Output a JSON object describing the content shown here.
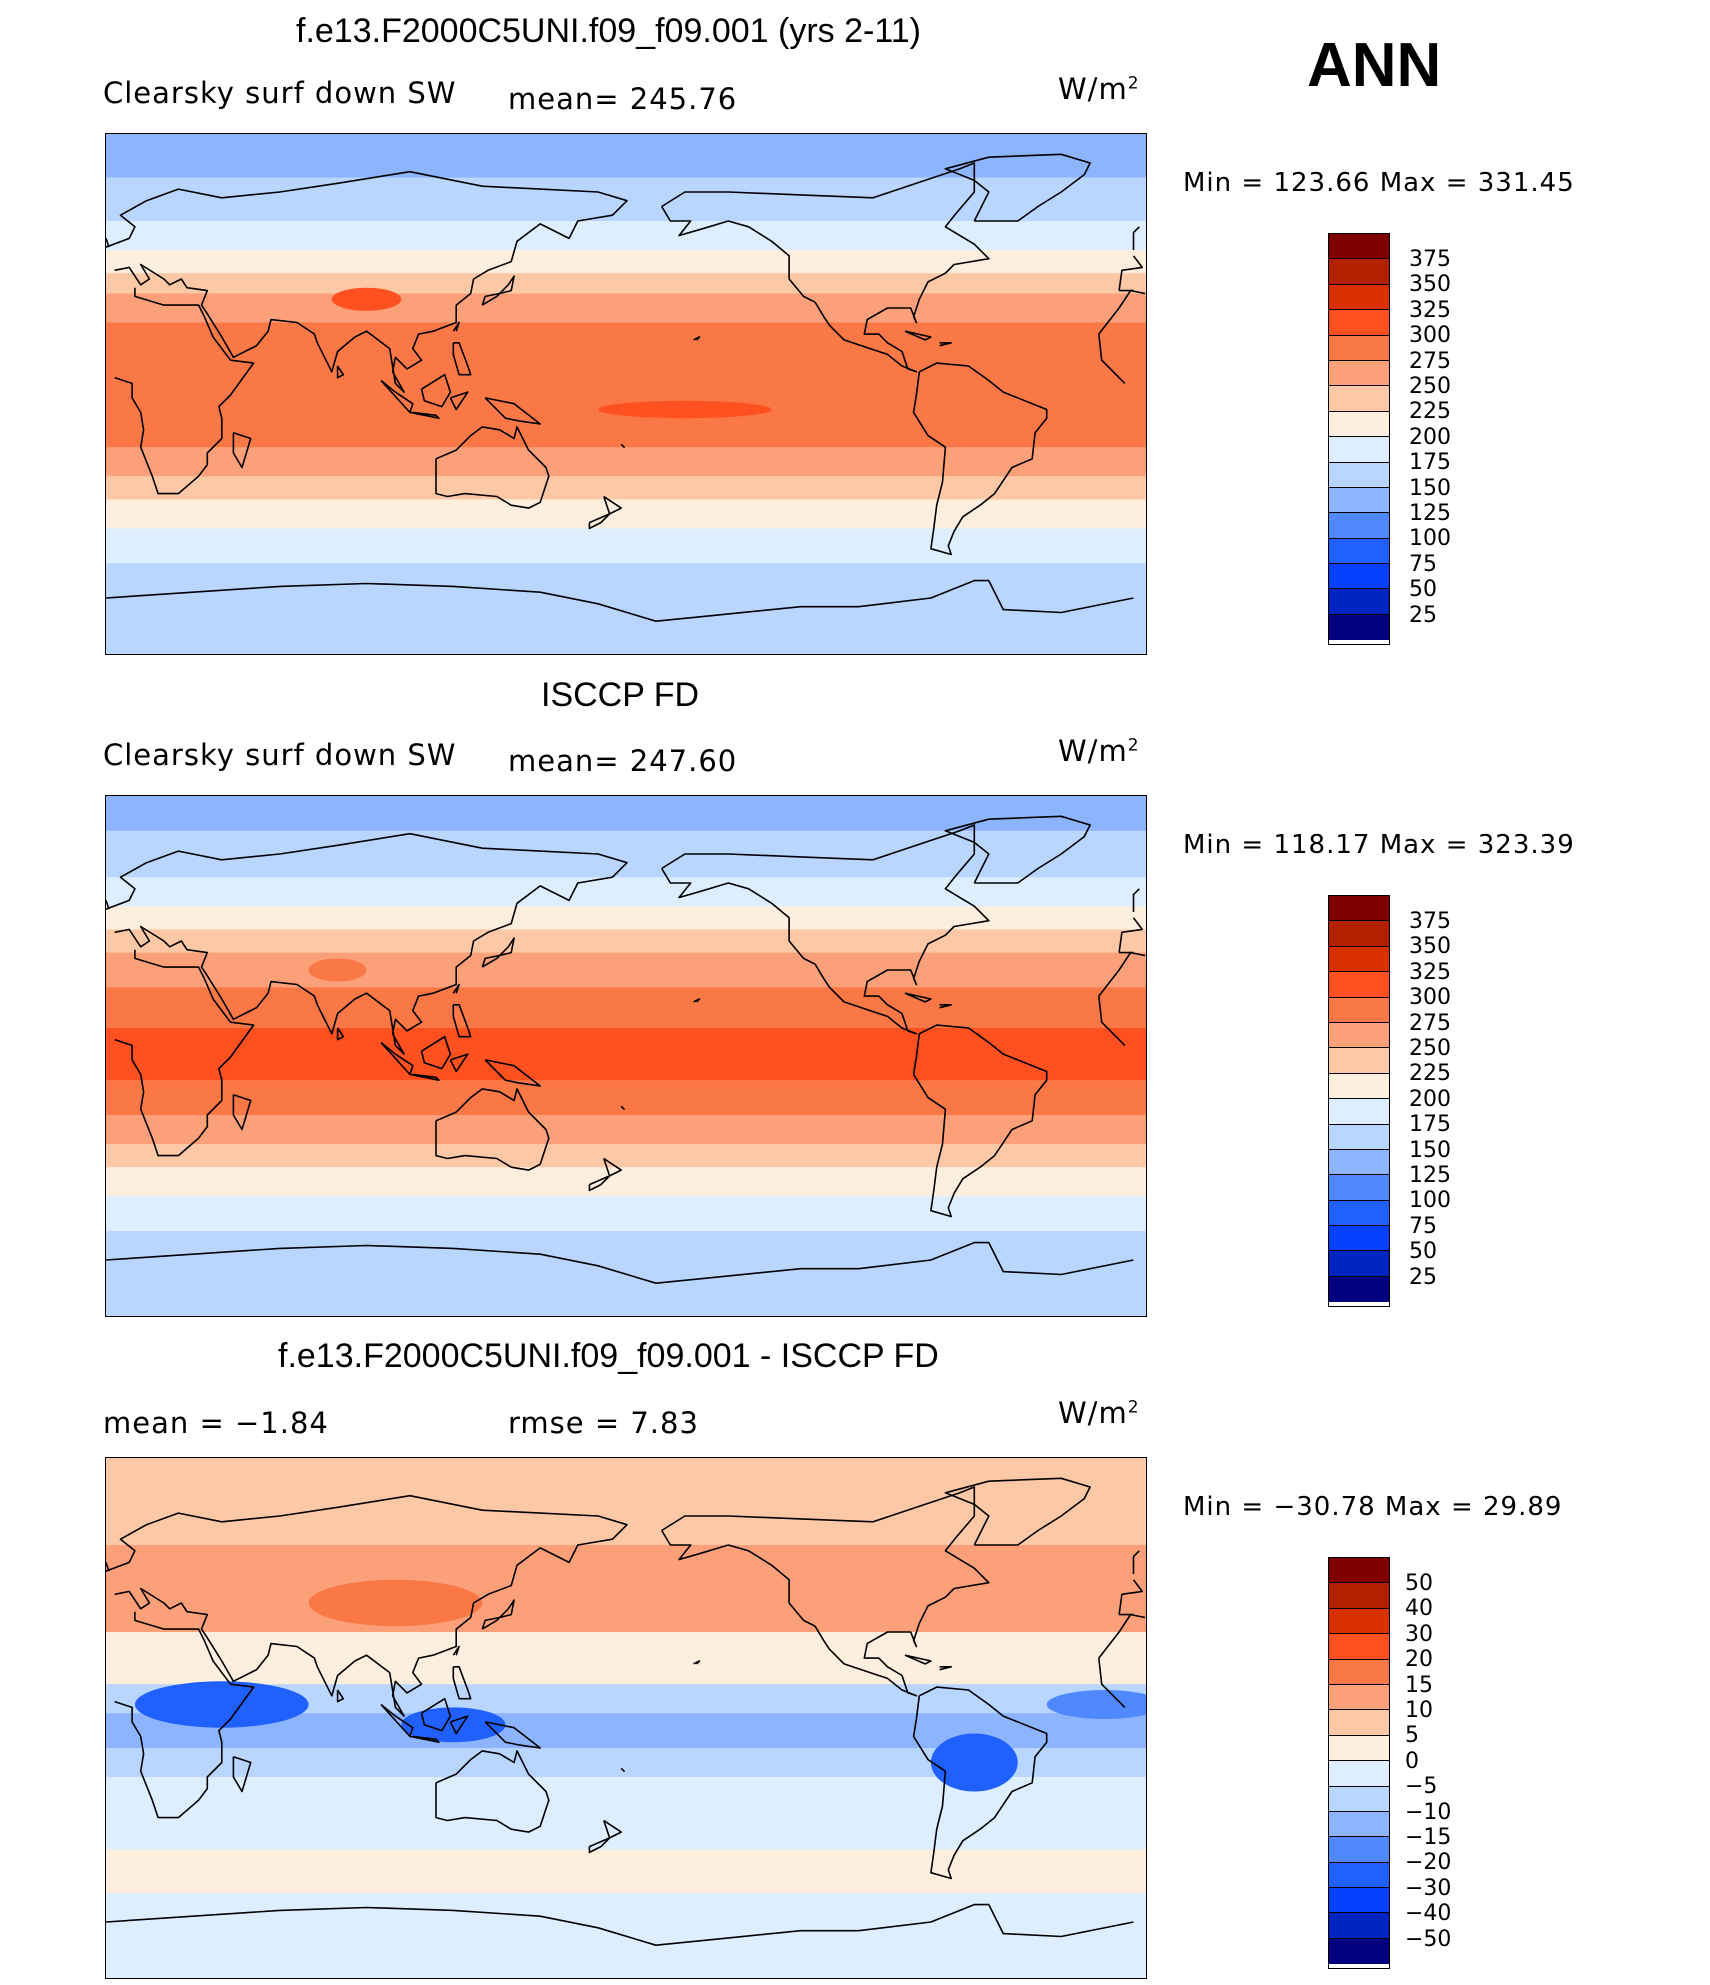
{
  "season": "ANN",
  "panels": [
    {
      "title": "f.e13.F2000C5UNI.f09_f09.001 (yrs 2-11)",
      "variable": "Clearsky surf down SW",
      "stat1": "mean= 245.76",
      "stat2": "",
      "units_base": "W/m",
      "units_exp": "2",
      "minmax": "Min  =  123.66  Max  =  331.45",
      "kind": "abs"
    },
    {
      "title": "ISCCP FD",
      "variable": "Clearsky surf down SW",
      "stat1": "mean= 247.60",
      "stat2": "",
      "units_base": "W/m",
      "units_exp": "2",
      "minmax": "Min  =  118.17  Max  =  323.39",
      "kind": "abs"
    },
    {
      "title": "f.e13.F2000C5UNI.f09_f09.001 - ISCCP FD",
      "variable": "mean  =    −1.84",
      "stat1": "rmse  =     7.83",
      "stat2": "",
      "units_base": "W/m",
      "units_exp": "2",
      "minmax": "Min  =  −30.78  Max  =    29.89",
      "kind": "diff"
    }
  ],
  "colorbars": {
    "abs": {
      "levels": [
        "375",
        "350",
        "325",
        "300",
        "275",
        "250",
        "225",
        "200",
        "175",
        "150",
        "125",
        "100",
        "75",
        "50",
        "25"
      ],
      "colors": [
        "#800000",
        "#b32000",
        "#d93000",
        "#ff5020",
        "#fa7846",
        "#fca07a",
        "#fdc8a6",
        "#fdeede",
        "#dceeff",
        "#b8d6ff",
        "#8cb4ff",
        "#5088ff",
        "#2060ff",
        "#0840ff",
        "#0025c0",
        "#000080"
      ]
    },
    "diff": {
      "levels": [
        "50",
        "40",
        "30",
        "20",
        "15",
        "10",
        "5",
        "0",
        "−5",
        "−10",
        "−15",
        "−20",
        "−30",
        "−40",
        "−50"
      ],
      "colors": [
        "#800000",
        "#b32000",
        "#d93000",
        "#ff5020",
        "#fa7846",
        "#fca07a",
        "#fdc8a6",
        "#fdeede",
        "#dceeff",
        "#b8d6ff",
        "#8cb4ff",
        "#5088ff",
        "#2060ff",
        "#0840ff",
        "#0025c0",
        "#000080"
      ]
    }
  },
  "map_data": {
    "projection": "cylindrical equidistant, centred 180",
    "abs_bands_model": [
      {
        "lat_top": 90,
        "lat_bot": 75,
        "value": 125
      },
      {
        "lat_top": 75,
        "lat_bot": 60,
        "value": 150
      },
      {
        "lat_top": 60,
        "lat_bot": 50,
        "value": 175
      },
      {
        "lat_top": 50,
        "lat_bot": 42,
        "value": 200
      },
      {
        "lat_top": 42,
        "lat_bot": 35,
        "value": 225
      },
      {
        "lat_top": 35,
        "lat_bot": 25,
        "value": 250
      },
      {
        "lat_top": 25,
        "lat_bot": -18,
        "value": 275
      },
      {
        "lat_top": -18,
        "lat_bot": -28,
        "value": 250
      },
      {
        "lat_top": -28,
        "lat_bot": -36,
        "value": 225
      },
      {
        "lat_top": -36,
        "lat_bot": -46,
        "value": 200
      },
      {
        "lat_top": -46,
        "lat_bot": -58,
        "value": 175
      },
      {
        "lat_top": -58,
        "lat_bot": -90,
        "value": 150
      }
    ],
    "abs_bands_obs": [
      {
        "lat_top": 90,
        "lat_bot": 78,
        "value": 125
      },
      {
        "lat_top": 78,
        "lat_bot": 62,
        "value": 150
      },
      {
        "lat_top": 62,
        "lat_bot": 52,
        "value": 175
      },
      {
        "lat_top": 52,
        "lat_bot": 44,
        "value": 200
      },
      {
        "lat_top": 44,
        "lat_bot": 36,
        "value": 225
      },
      {
        "lat_top": 36,
        "lat_bot": 24,
        "value": 250
      },
      {
        "lat_top": 24,
        "lat_bot": 10,
        "value": 275
      },
      {
        "lat_top": 10,
        "lat_bot": -8,
        "value": 300
      },
      {
        "lat_top": -8,
        "lat_bot": -20,
        "value": 275
      },
      {
        "lat_top": -20,
        "lat_bot": -30,
        "value": 250
      },
      {
        "lat_top": -30,
        "lat_bot": -38,
        "value": 225
      },
      {
        "lat_top": -38,
        "lat_bot": -48,
        "value": 200
      },
      {
        "lat_top": -48,
        "lat_bot": -60,
        "value": 175
      },
      {
        "lat_top": -60,
        "lat_bot": -90,
        "value": 150
      }
    ],
    "diff_bands": [
      {
        "lat_top": 90,
        "lat_bot": 60,
        "value": 5
      },
      {
        "lat_top": 60,
        "lat_bot": 30,
        "value": 10
      },
      {
        "lat_top": 30,
        "lat_bot": 12,
        "value": 0
      },
      {
        "lat_top": 12,
        "lat_bot": 2,
        "value": -10
      },
      {
        "lat_top": 2,
        "lat_bot": -10,
        "value": -15
      },
      {
        "lat_top": -10,
        "lat_bot": -20,
        "value": -10
      },
      {
        "lat_top": -20,
        "lat_bot": -45,
        "value": -5
      },
      {
        "lat_top": -45,
        "lat_bot": -60,
        "value": 0
      },
      {
        "lat_top": -60,
        "lat_bot": -90,
        "value": -5
      }
    ]
  }
}
